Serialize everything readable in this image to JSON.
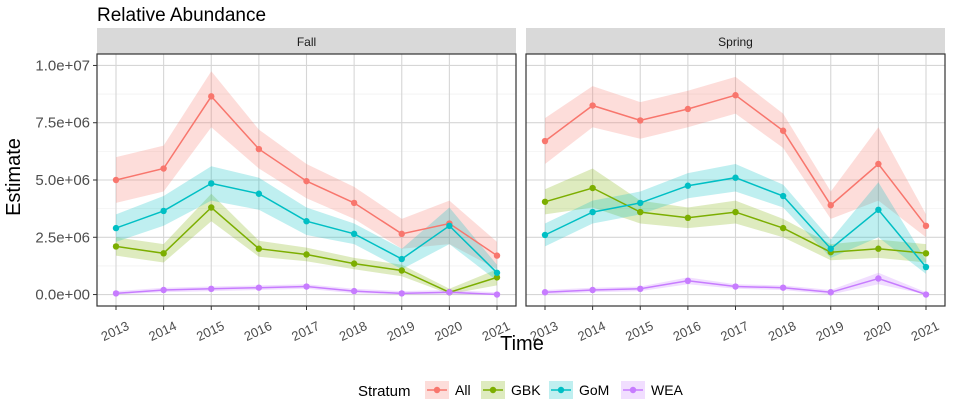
{
  "chart_data": {
    "type": "line",
    "title": "Relative Abundance",
    "xlabel": "Time",
    "ylabel": "Estimate",
    "ylim": [
      -500000,
      10500000
    ],
    "yticks": [
      0,
      2500000,
      5000000,
      7500000,
      10000000
    ],
    "ytick_labels": [
      "0.0e+00",
      "2.5e+06",
      "5.0e+06",
      "7.5e+06",
      "1.0e+07"
    ],
    "x": [
      2013,
      2014,
      2015,
      2016,
      2017,
      2018,
      2019,
      2020,
      2021
    ],
    "xtick_labels": [
      "2013",
      "2014",
      "2015",
      "2016",
      "2017",
      "2018",
      "2019",
      "2020",
      "2021"
    ],
    "grid": true,
    "legend": {
      "title": "Stratum",
      "placement": "bottom",
      "entries": [
        "All",
        "GBK",
        "GoM",
        "WEA"
      ]
    },
    "colors": {
      "All": "#F8766D",
      "GBK": "#7CAE00",
      "GoM": "#00BFC4",
      "WEA": "#C77CFF"
    },
    "panels": [
      {
        "name": "Fall",
        "series": [
          {
            "name": "All",
            "values": [
              5000000,
              5500000,
              8650000,
              6350000,
              4950000,
              4000000,
              2650000,
              3100000,
              1700000
            ],
            "lower": [
              4000000,
              4500000,
              7300000,
              5500000,
              4200000,
              3300000,
              2000000,
              2200000,
              1100000
            ],
            "upper": [
              6000000,
              6500000,
              9750000,
              7200000,
              5700000,
              4700000,
              3300000,
              4100000,
              2300000
            ]
          },
          {
            "name": "GBK",
            "values": [
              2100000,
              1800000,
              3800000,
              2000000,
              1750000,
              1350000,
              1050000,
              100000,
              750000
            ],
            "lower": [
              1700000,
              1400000,
              3200000,
              1650000,
              1450000,
              1100000,
              800000,
              20000,
              400000
            ],
            "upper": [
              2500000,
              2200000,
              4400000,
              2350000,
              2050000,
              1600000,
              1300000,
              250000,
              1100000
            ]
          },
          {
            "name": "GoM",
            "values": [
              2900000,
              3650000,
              4850000,
              4400000,
              3200000,
              2650000,
              1550000,
              3000000,
              950000
            ],
            "lower": [
              2300000,
              3000000,
              4100000,
              3700000,
              2600000,
              2200000,
              1100000,
              2200000,
              600000
            ],
            "upper": [
              3500000,
              4300000,
              5600000,
              5100000,
              3800000,
              3100000,
              2000000,
              3800000,
              1300000
            ]
          },
          {
            "name": "WEA",
            "values": [
              50000,
              200000,
              250000,
              300000,
              350000,
              150000,
              50000,
              100000,
              0
            ],
            "lower": [
              0,
              100000,
              150000,
              200000,
              250000,
              50000,
              0,
              0,
              0
            ],
            "upper": [
              150000,
              300000,
              350000,
              400000,
              450000,
              250000,
              150000,
              200000,
              100000
            ]
          }
        ]
      },
      {
        "name": "Spring",
        "series": [
          {
            "name": "All",
            "values": [
              6700000,
              8250000,
              7600000,
              8100000,
              8700000,
              7150000,
              3900000,
              5700000,
              3000000
            ],
            "lower": [
              5700000,
              7300000,
              6800000,
              7300000,
              7900000,
              6400000,
              3300000,
              4100000,
              2500000
            ],
            "upper": [
              7700000,
              9100000,
              8400000,
              8900000,
              9500000,
              7900000,
              4500000,
              7300000,
              3500000
            ]
          },
          {
            "name": "GBK",
            "values": [
              4050000,
              4650000,
              3600000,
              3350000,
              3600000,
              2900000,
              1850000,
              2000000,
              1800000
            ],
            "lower": [
              3500000,
              3800000,
              3100000,
              2900000,
              3100000,
              2500000,
              1500000,
              1600000,
              1400000
            ],
            "upper": [
              4600000,
              5500000,
              4100000,
              3800000,
              4100000,
              3300000,
              2200000,
              2400000,
              2200000
            ]
          },
          {
            "name": "GoM",
            "values": [
              2600000,
              3600000,
              4000000,
              4750000,
              5100000,
              4300000,
              2000000,
              3700000,
              1200000
            ],
            "lower": [
              2100000,
              3100000,
              3500000,
              4200000,
              4500000,
              3800000,
              1600000,
              2500000,
              900000
            ],
            "upper": [
              3100000,
              4100000,
              4500000,
              5300000,
              5700000,
              4800000,
              2400000,
              4900000,
              1500000
            ]
          },
          {
            "name": "WEA",
            "values": [
              100000,
              200000,
              250000,
              600000,
              350000,
              300000,
              100000,
              700000,
              0
            ],
            "lower": [
              0,
              100000,
              150000,
              450000,
              250000,
              200000,
              0,
              450000,
              0
            ],
            "upper": [
              200000,
              300000,
              350000,
              750000,
              450000,
              400000,
              200000,
              950000,
              100000
            ]
          }
        ]
      }
    ]
  }
}
